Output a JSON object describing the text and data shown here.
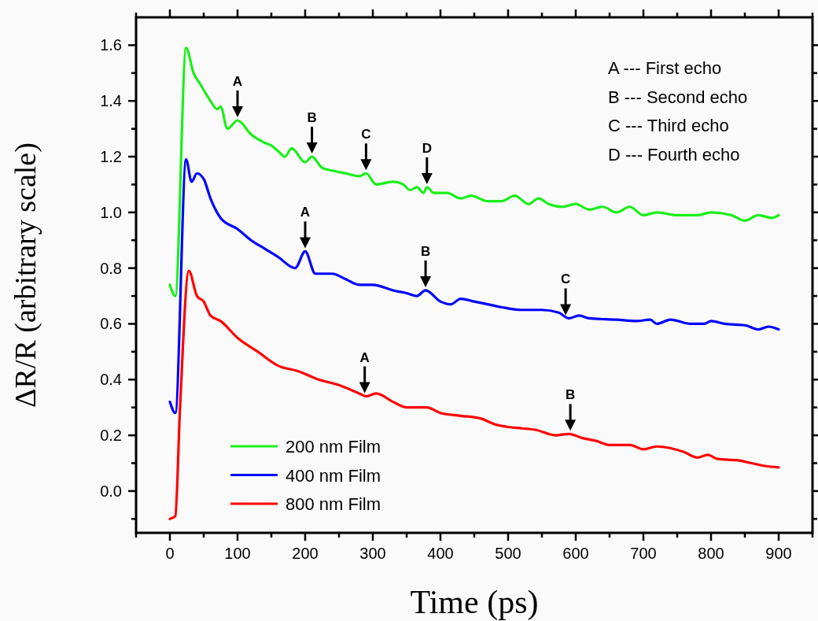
{
  "chart_data": {
    "type": "line",
    "xlabel": "Time (ps)",
    "ylabel": "ΔR/R (arbitrary scale)",
    "xlim": [
      -50,
      950
    ],
    "ylim": [
      -0.15,
      1.7
    ],
    "xticks": [
      {
        "value": -50,
        "label": null
      },
      0,
      {
        "value": 50,
        "label": null
      },
      100,
      {
        "value": 150,
        "label": null
      },
      200,
      {
        "value": 250,
        "label": null
      },
      300,
      {
        "value": 350,
        "label": null
      },
      400,
      {
        "value": 450,
        "label": null
      },
      500,
      {
        "value": 550,
        "label": null
      },
      600,
      {
        "value": 650,
        "label": null
      },
      700,
      {
        "value": 750,
        "label": null
      },
      800,
      {
        "value": 850,
        "label": null
      },
      900,
      {
        "value": 950,
        "label": null
      }
    ],
    "yticks": [
      {
        "value": -0.1,
        "label": null
      },
      {
        "value": 0,
        "label": "0.0"
      },
      {
        "value": 0.1,
        "label": null
      },
      0.2,
      {
        "value": 0.3,
        "label": null
      },
      0.4,
      {
        "value": 0.5,
        "label": null
      },
      0.6,
      {
        "value": 0.7,
        "label": null
      },
      0.8,
      {
        "value": 0.9,
        "label": null
      },
      {
        "value": 1,
        "label": "1.0"
      },
      {
        "value": 1.1,
        "label": null
      },
      1.2,
      {
        "value": 1.3,
        "label": null
      },
      1.4,
      {
        "value": 1.5,
        "label": null
      },
      1.6
    ],
    "grid": false,
    "legend": "bottom left",
    "marker": "none",
    "line_style": "solid",
    "series": [
      {
        "name": "200 nm Film",
        "color": "#1aef1a",
        "x": [
          0,
          8,
          24,
          35,
          45,
          60,
          70,
          75,
          85,
          100,
          120,
          140,
          150,
          160,
          170,
          180,
          200,
          210,
          225,
          240,
          260,
          280,
          290,
          305,
          330,
          345,
          355,
          365,
          375,
          380,
          390,
          410,
          430,
          445,
          470,
          490,
          510,
          530,
          545,
          560,
          580,
          600,
          620,
          640,
          660,
          680,
          700,
          720,
          750,
          780,
          800,
          830,
          850,
          870,
          890,
          900
        ],
        "values": [
          0.74,
          0.7,
          1.59,
          1.5,
          1.46,
          1.4,
          1.37,
          1.38,
          1.3,
          1.33,
          1.28,
          1.25,
          1.24,
          1.22,
          1.2,
          1.23,
          1.18,
          1.2,
          1.16,
          1.15,
          1.14,
          1.13,
          1.14,
          1.1,
          1.11,
          1.1,
          1.08,
          1.09,
          1.07,
          1.09,
          1.07,
          1.07,
          1.05,
          1.06,
          1.04,
          1.04,
          1.06,
          1.03,
          1.05,
          1.03,
          1.02,
          1.03,
          1.01,
          1.02,
          1,
          1.02,
          0.99,
          1,
          0.99,
          0.99,
          1,
          0.99,
          0.97,
          0.99,
          0.98,
          0.99
        ]
      },
      {
        "name": "400 nm Film",
        "color": "#0000ff",
        "x": [
          0,
          8,
          24,
          32,
          40,
          50,
          60,
          75,
          100,
          120,
          140,
          160,
          185,
          200,
          215,
          240,
          260,
          280,
          300,
          330,
          350,
          365,
          378,
          400,
          415,
          430,
          450,
          470,
          490,
          520,
          550,
          575,
          590,
          605,
          620,
          660,
          690,
          710,
          720,
          740,
          770,
          790,
          800,
          820,
          850,
          870,
          885,
          900
        ],
        "values": [
          0.32,
          0.28,
          1.19,
          1.11,
          1.14,
          1.12,
          1.05,
          0.98,
          0.94,
          0.9,
          0.87,
          0.84,
          0.8,
          0.86,
          0.78,
          0.78,
          0.76,
          0.74,
          0.74,
          0.72,
          0.71,
          0.7,
          0.72,
          0.68,
          0.67,
          0.69,
          0.68,
          0.67,
          0.66,
          0.65,
          0.65,
          0.64,
          0.62,
          0.63,
          0.62,
          0.615,
          0.61,
          0.615,
          0.6,
          0.615,
          0.6,
          0.6,
          0.61,
          0.6,
          0.595,
          0.58,
          0.59,
          0.58
        ]
      },
      {
        "name": "800 nm Film",
        "color": "#ff0000",
        "x": [
          0,
          8,
          15,
          28,
          40,
          50,
          60,
          75,
          100,
          130,
          160,
          190,
          220,
          250,
          280,
          290,
          305,
          330,
          350,
          380,
          400,
          430,
          460,
          480,
          500,
          520,
          540,
          570,
          590,
          610,
          630,
          650,
          680,
          700,
          720,
          760,
          780,
          795,
          810,
          840,
          860,
          880,
          900
        ],
        "values": [
          -0.1,
          -0.09,
          0.3,
          0.79,
          0.7,
          0.68,
          0.63,
          0.61,
          0.55,
          0.5,
          0.45,
          0.43,
          0.4,
          0.38,
          0.35,
          0.34,
          0.35,
          0.32,
          0.3,
          0.3,
          0.28,
          0.27,
          0.26,
          0.24,
          0.23,
          0.225,
          0.22,
          0.2,
          0.205,
          0.19,
          0.18,
          0.165,
          0.165,
          0.15,
          0.16,
          0.14,
          0.12,
          0.13,
          0.115,
          0.11,
          0.1,
          0.09,
          0.085
        ]
      }
    ],
    "annotations": [
      {
        "text": "A",
        "x": 100,
        "y": 1.33
      },
      {
        "text": "B",
        "x": 210,
        "y": 1.2
      },
      {
        "text": "C",
        "x": 290,
        "y": 1.14
      },
      {
        "text": "D",
        "x": 380,
        "y": 1.09
      },
      {
        "text": "A",
        "x": 200,
        "y": 0.86
      },
      {
        "text": "B",
        "x": 378,
        "y": 0.72
      },
      {
        "text": "C",
        "x": 585,
        "y": 0.62
      },
      {
        "text": "A",
        "x": 288,
        "y": 0.34
      },
      {
        "text": "B",
        "x": 592,
        "y": 0.205
      },
      "A --- First echo",
      "B --- Second echo",
      "C --- Third echo",
      "D --- Fourth echo"
    ]
  }
}
